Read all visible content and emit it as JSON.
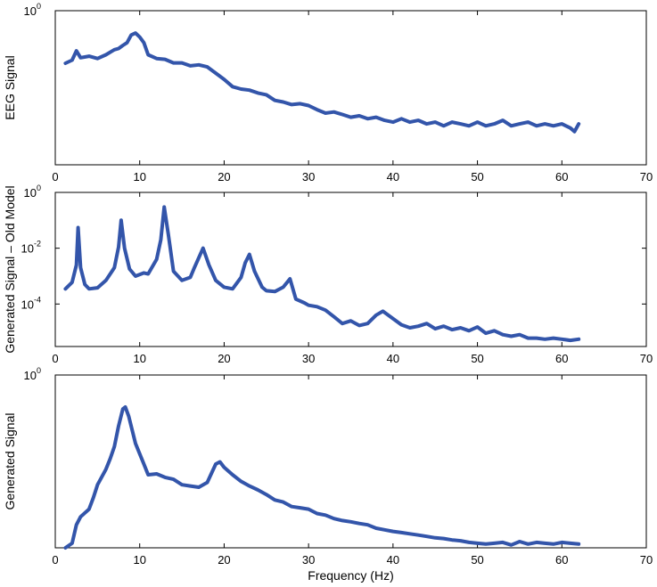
{
  "chart_data": [
    {
      "type": "line",
      "ylabel": "EEG Signal",
      "xlabel": "",
      "xlim": [
        0,
        70
      ],
      "x_ticks": [
        "0",
        "10",
        "20",
        "30",
        "40",
        "50",
        "60",
        "70"
      ],
      "y_scale": "log",
      "ylim": [
        0.003,
        1
      ],
      "y_ticks": [
        {
          "value": 1,
          "base": "10",
          "exp": "0"
        }
      ],
      "series": [
        {
          "color": "#3355aa",
          "x": [
            1.2,
            2,
            2.5,
            3,
            4,
            5,
            6,
            7,
            7.5,
            8,
            8.5,
            9,
            9.5,
            10,
            10.5,
            11,
            12,
            13,
            14,
            15,
            16,
            17,
            18,
            19,
            20,
            21,
            22,
            23,
            24,
            25,
            26,
            27,
            28,
            29,
            30,
            31,
            32,
            33,
            34,
            35,
            36,
            37,
            38,
            39,
            40,
            41,
            42,
            43,
            44,
            45,
            46,
            47,
            48,
            49,
            50,
            51,
            52,
            53,
            54,
            55,
            56,
            57,
            58,
            59,
            60,
            61,
            61.5,
            62
          ],
          "y": [
            0.138,
            0.155,
            0.22,
            0.17,
            0.18,
            0.165,
            0.19,
            0.23,
            0.24,
            0.27,
            0.3,
            0.4,
            0.43,
            0.37,
            0.3,
            0.19,
            0.165,
            0.16,
            0.14,
            0.14,
            0.125,
            0.13,
            0.12,
            0.095,
            0.075,
            0.057,
            0.052,
            0.05,
            0.045,
            0.042,
            0.034,
            0.032,
            0.029,
            0.03,
            0.028,
            0.024,
            0.021,
            0.022,
            0.02,
            0.018,
            0.019,
            0.017,
            0.018,
            0.016,
            0.015,
            0.017,
            0.015,
            0.016,
            0.014,
            0.015,
            0.013,
            0.015,
            0.014,
            0.013,
            0.015,
            0.013,
            0.014,
            0.016,
            0.013,
            0.014,
            0.015,
            0.013,
            0.014,
            0.013,
            0.014,
            0.012,
            0.0105,
            0.014
          ]
        }
      ]
    },
    {
      "type": "line",
      "ylabel": "Generated Signal – Old Model",
      "xlabel": "",
      "xlim": [
        0,
        70
      ],
      "x_ticks": [
        "0",
        "10",
        "20",
        "30",
        "40",
        "50",
        "60",
        "70"
      ],
      "y_scale": "log",
      "ylim": [
        3e-06,
        1
      ],
      "y_ticks": [
        {
          "value": 1,
          "base": "10",
          "exp": "0"
        },
        {
          "value": 0.01,
          "base": "10",
          "exp": "-2"
        },
        {
          "value": 0.0001,
          "base": "10",
          "exp": "-4"
        }
      ],
      "series": [
        {
          "color": "#3355aa",
          "x": [
            1.2,
            2,
            2.5,
            2.7,
            3,
            3.5,
            4,
            5,
            6,
            7,
            7.5,
            7.8,
            8.2,
            8.8,
            9.5,
            10.5,
            11,
            12,
            12.5,
            12.9,
            13.4,
            14,
            15,
            16,
            16.5,
            17.5,
            18.2,
            19,
            20,
            21,
            22,
            22.5,
            23,
            23.6,
            24.5,
            25,
            26,
            27,
            27.8,
            28.5,
            29.5,
            30,
            31,
            32,
            33,
            34,
            35,
            36,
            37,
            38,
            38.8,
            40,
            41,
            42,
            43,
            44,
            45,
            46,
            47,
            48,
            49,
            50,
            51,
            52,
            53,
            54,
            55,
            56,
            57,
            58,
            59,
            60,
            61,
            62
          ],
          "y": [
            0.00035,
            0.0006,
            0.0025,
            0.055,
            0.002,
            0.0005,
            0.00035,
            0.00038,
            0.0007,
            0.002,
            0.011,
            0.1,
            0.01,
            0.0018,
            0.001,
            0.0013,
            0.0012,
            0.004,
            0.02,
            0.3,
            0.03,
            0.0015,
            0.0007,
            0.0009,
            0.0021,
            0.01,
            0.0025,
            0.0007,
            0.0004,
            0.00035,
            0.0009,
            0.003,
            0.006,
            0.0015,
            0.0004,
            0.0003,
            0.00028,
            0.0004,
            0.0008,
            0.00015,
            0.00011,
            9e-05,
            8e-05,
            6e-05,
            3.5e-05,
            2e-05,
            2.5e-05,
            1.7e-05,
            2e-05,
            4e-05,
            5.5e-05,
            3e-05,
            1.8e-05,
            1.4e-05,
            1.6e-05,
            2e-05,
            1.3e-05,
            1.6e-05,
            1.2e-05,
            1.4e-05,
            1.1e-05,
            1.5e-05,
            9e-06,
            1.1e-05,
            8e-06,
            7e-06,
            8e-06,
            6e-06,
            6e-06,
            5.5e-06,
            6e-06,
            5.5e-06,
            5e-06,
            5.5e-06
          ]
        }
      ]
    },
    {
      "type": "line",
      "ylabel": "Generated Signal",
      "xlabel": "Frequency (Hz)",
      "xlim": [
        0,
        70
      ],
      "x_ticks": [
        "0",
        "10",
        "20",
        "30",
        "40",
        "50",
        "60",
        "70"
      ],
      "y_scale": "log",
      "ylim": [
        0.003,
        1
      ],
      "y_ticks": [
        {
          "value": 1,
          "base": "10",
          "exp": "0"
        }
      ],
      "series": [
        {
          "color": "#3355aa",
          "x": [
            1.2,
            2,
            2.5,
            3,
            4,
            4.5,
            5,
            6,
            6.5,
            7,
            7.5,
            8,
            8.3,
            8.7,
            9.5,
            10.5,
            11,
            12,
            13,
            14,
            15,
            16,
            17,
            18,
            19,
            19.5,
            20,
            21,
            22,
            23,
            24,
            25,
            26,
            27,
            28,
            29,
            30,
            31,
            32,
            33,
            34,
            35,
            36,
            37,
            38,
            39,
            40,
            41,
            42,
            43,
            44,
            45,
            46,
            47,
            48,
            49,
            50,
            51,
            52,
            53,
            54,
            55,
            56,
            57,
            58,
            59,
            60,
            61,
            62
          ],
          "y": [
            0.003,
            0.0035,
            0.0065,
            0.0085,
            0.011,
            0.016,
            0.025,
            0.042,
            0.06,
            0.09,
            0.18,
            0.32,
            0.34,
            0.25,
            0.1,
            0.05,
            0.035,
            0.036,
            0.032,
            0.03,
            0.025,
            0.024,
            0.023,
            0.027,
            0.05,
            0.054,
            0.045,
            0.035,
            0.028,
            0.024,
            0.021,
            0.018,
            0.015,
            0.014,
            0.012,
            0.0115,
            0.011,
            0.0095,
            0.009,
            0.008,
            0.0075,
            0.0072,
            0.0068,
            0.0065,
            0.0058,
            0.0055,
            0.0052,
            0.005,
            0.0048,
            0.0046,
            0.0044,
            0.0042,
            0.0041,
            0.0039,
            0.0038,
            0.0036,
            0.0035,
            0.0034,
            0.0035,
            0.0036,
            0.0033,
            0.0037,
            0.0034,
            0.0036,
            0.0035,
            0.0034,
            0.0036,
            0.0035,
            0.0034
          ]
        }
      ]
    }
  ]
}
